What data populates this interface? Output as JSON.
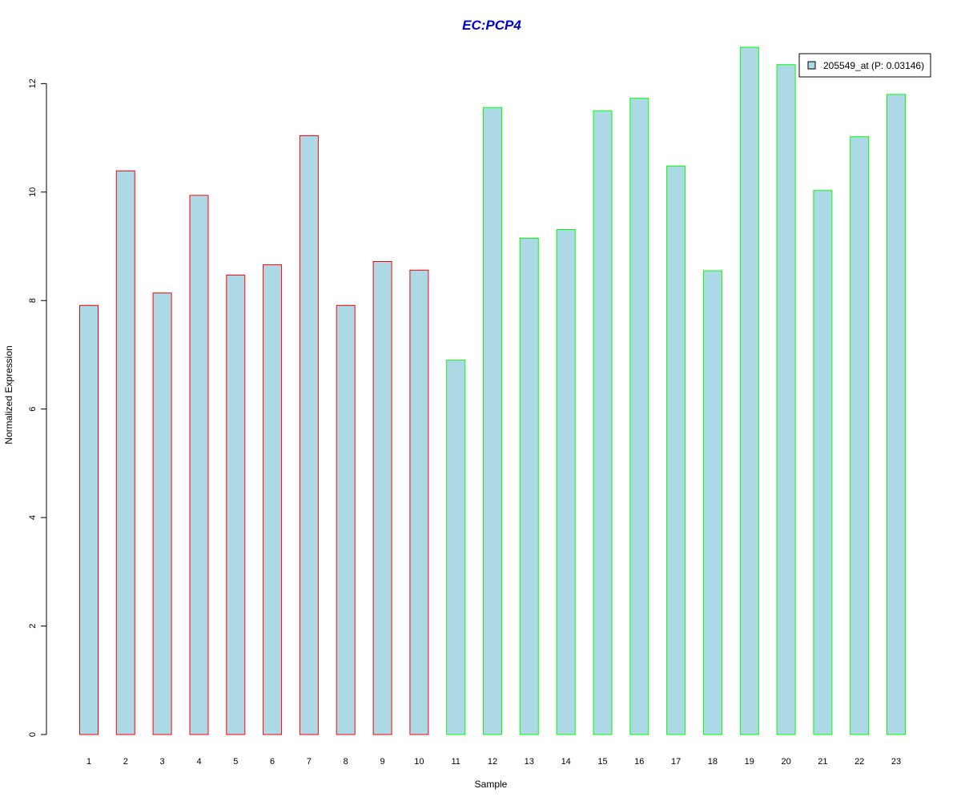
{
  "chart_data": {
    "type": "bar",
    "title": "EC:PCP4",
    "xlabel": "Sample",
    "ylabel": "Normalized Expression",
    "categories": [
      "1",
      "2",
      "3",
      "4",
      "5",
      "6",
      "7",
      "8",
      "9",
      "10",
      "11",
      "12",
      "13",
      "14",
      "15",
      "16",
      "17",
      "18",
      "19",
      "20",
      "21",
      "22",
      "23"
    ],
    "values": [
      7.91,
      10.39,
      8.14,
      9.94,
      8.47,
      8.66,
      11.04,
      7.91,
      8.72,
      8.56,
      6.9,
      11.56,
      9.15,
      9.31,
      11.5,
      11.73,
      10.48,
      8.55,
      12.67,
      12.35,
      10.03,
      11.02,
      11.8
    ],
    "series": [
      {
        "name": "205549_at (P: 0.03146)",
        "values": [
          7.91,
          10.39,
          8.14,
          9.94,
          8.47,
          8.66,
          11.04,
          7.91,
          8.72,
          8.56,
          6.9,
          11.56,
          9.15,
          9.31,
          11.5,
          11.73,
          10.48,
          8.55,
          12.67,
          12.35,
          10.03,
          11.02,
          11.8
        ]
      }
    ],
    "group_border_colors": [
      "#ff0000",
      "#ff0000",
      "#ff0000",
      "#ff0000",
      "#ff0000",
      "#ff0000",
      "#ff0000",
      "#ff0000",
      "#ff0000",
      "#ff0000",
      "#00ff00",
      "#00ff00",
      "#00ff00",
      "#00ff00",
      "#00ff00",
      "#00ff00",
      "#00ff00",
      "#00ff00",
      "#00ff00",
      "#00ff00",
      "#00ff00",
      "#00ff00",
      "#00ff00"
    ],
    "bar_fill": "#add8e6",
    "title_color": "#0000cd",
    "ylim": [
      0,
      12.67
    ],
    "y_ticks": [
      0,
      2,
      4,
      6,
      8,
      10,
      12
    ],
    "grid": false,
    "legend_position": "top-right"
  }
}
